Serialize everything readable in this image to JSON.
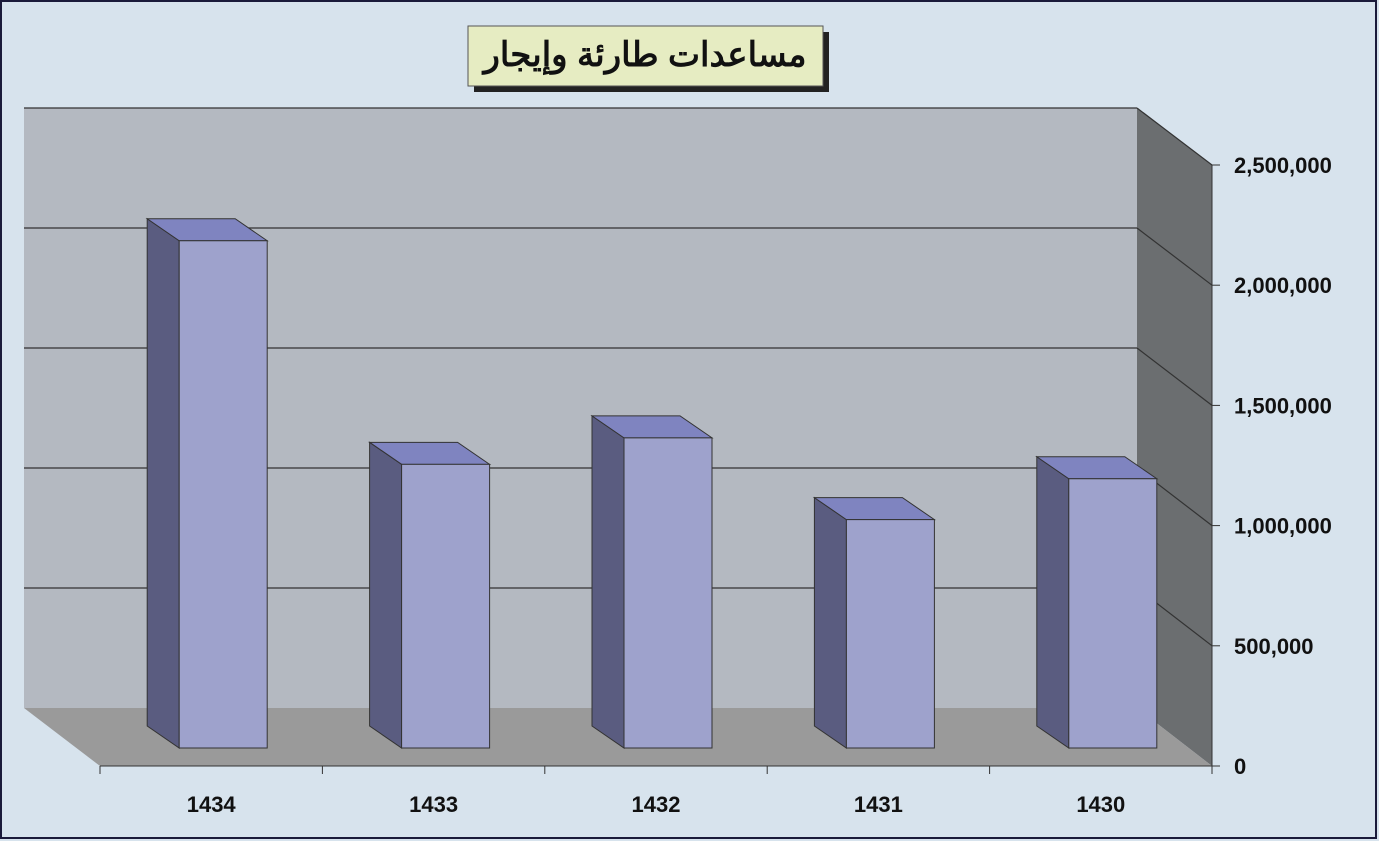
{
  "chart_data": {
    "type": "bar3d",
    "title": "مساعدات طارئة وإيجار",
    "categories": [
      "1434",
      "1433",
      "1432",
      "1431",
      "1430"
    ],
    "values": [
      2110000,
      1180000,
      1290000,
      950000,
      1120000
    ],
    "color": "#9ea2cc",
    "ylim": [
      0,
      2500000
    ],
    "yticks": [
      0,
      {
        "value": 500000,
        "label": "500,000"
      },
      {
        "value": 1000000,
        "label": "1,000,000"
      },
      {
        "value": 1500000,
        "label": "1,500,000"
      },
      {
        "value": 2000000,
        "label": "2,000,000"
      },
      {
        "value": 2500000,
        "label": "2,500,000"
      }
    ],
    "grid": true
  }
}
